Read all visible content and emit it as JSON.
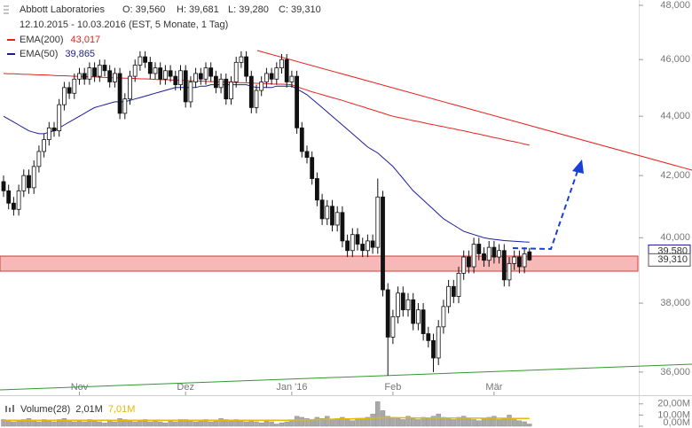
{
  "chart_data": {
    "type": "candlestick",
    "title": "Abbott Laboratories",
    "ohlc_labels": [
      "O: 39,560",
      "H: 39,681",
      "L: 39,280",
      "C: 39,310"
    ],
    "subtitle": "12.10.2015 - 10.03.2016 (EST, 5 Monate, 1 Tag)",
    "categories": [
      null,
      null,
      null,
      null,
      null,
      null,
      null,
      null,
      null,
      null,
      null,
      null,
      null,
      null,
      null,
      "Nov",
      null,
      null,
      null,
      null,
      null,
      null,
      null,
      null,
      null,
      null,
      null,
      null,
      null,
      null,
      null,
      null,
      null,
      null,
      null,
      null,
      "Dez",
      null,
      null,
      null,
      null,
      null,
      null,
      null,
      null,
      null,
      null,
      null,
      null,
      null,
      null,
      null,
      null,
      null,
      null,
      null,
      null,
      "Jan '16",
      null,
      null,
      null,
      null,
      null,
      null,
      null,
      null,
      null,
      null,
      null,
      null,
      null,
      null,
      null,
      null,
      null,
      null,
      null,
      "Feb",
      null,
      null,
      null,
      null,
      null,
      null,
      null,
      null,
      null,
      null,
      null,
      null,
      null,
      null,
      null,
      null,
      null,
      null,
      null,
      "Mär",
      null,
      null,
      null,
      null,
      null,
      null,
      null
    ],
    "open": [
      41.8,
      41.5,
      41.1,
      40.9,
      41.5,
      42.0,
      41.6,
      42.3,
      42.8,
      43.2,
      43.6,
      43.5,
      44.4,
      45.0,
      44.8,
      45.3,
      45.5,
      45.3,
      45.7,
      45.4,
      45.8,
      45.6,
      45.2,
      45.5,
      44.1,
      44.6,
      45.4,
      45.8,
      46.1,
      45.9,
      45.5,
      45.7,
      45.3,
      45.6,
      45.4,
      45.1,
      45.6,
      44.5,
      45.2,
      45.5,
      45.3,
      45.7,
      45.4,
      45.0,
      45.3,
      44.6,
      45.2,
      45.9,
      46.1,
      45.4,
      44.3,
      44.9,
      45.2,
      45.5,
      45.3,
      45.7,
      46.0,
      45.2,
      45.4,
      43.6,
      42.8,
      42.6,
      41.9,
      41.2,
      40.6,
      41.0,
      40.4,
      40.8,
      39.9,
      39.6,
      40.1,
      39.8,
      39.6,
      39.9,
      39.7,
      41.3,
      38.4,
      37.0,
      37.6,
      38.3,
      37.8,
      38.1,
      37.4,
      37.8,
      37.1,
      36.9,
      36.4,
      37.3,
      37.9,
      38.5,
      38.2,
      38.9,
      39.4,
      39.1,
      39.8,
      39.5,
      39.3,
      39.7,
      39.4,
      39.6,
      38.7,
      39.2,
      39.4,
      39.1,
      39.56
    ],
    "high": [
      42.0,
      41.7,
      41.3,
      41.7,
      42.2,
      42.2,
      42.5,
      43.0,
      43.4,
      43.8,
      43.8,
      44.6,
      45.2,
      45.2,
      45.5,
      45.7,
      45.7,
      45.9,
      45.9,
      46.0,
      46.0,
      45.8,
      45.7,
      45.7,
      44.8,
      45.6,
      46.0,
      46.3,
      46.3,
      46.1,
      45.9,
      45.9,
      45.8,
      45.8,
      45.6,
      45.8,
      45.8,
      45.4,
      45.7,
      45.7,
      45.9,
      45.9,
      45.6,
      45.5,
      45.5,
      45.4,
      46.1,
      46.3,
      46.3,
      45.6,
      45.1,
      45.4,
      45.7,
      45.7,
      45.9,
      46.2,
      46.2,
      45.6,
      45.6,
      43.8,
      43.0,
      42.8,
      42.1,
      41.4,
      41.2,
      41.2,
      41.0,
      41.0,
      40.1,
      40.3,
      40.3,
      40.0,
      40.1,
      40.1,
      41.9,
      41.5,
      38.6,
      37.8,
      38.5,
      38.5,
      38.3,
      38.3,
      38.0,
      38.0,
      37.3,
      37.1,
      37.5,
      38.1,
      38.7,
      38.7,
      39.1,
      39.6,
      39.6,
      40.0,
      40.0,
      39.7,
      39.9,
      39.9,
      39.8,
      39.8,
      39.4,
      39.6,
      39.6,
      39.7,
      39.681
    ],
    "low": [
      41.3,
      40.9,
      40.7,
      40.7,
      41.3,
      41.4,
      41.4,
      42.1,
      42.6,
      43.0,
      43.3,
      43.3,
      44.2,
      44.6,
      44.6,
      45.1,
      45.1,
      45.1,
      45.2,
      45.2,
      45.4,
      45.0,
      45.0,
      43.9,
      43.9,
      44.4,
      45.2,
      45.6,
      45.7,
      45.3,
      45.3,
      45.1,
      45.1,
      45.2,
      44.9,
      44.9,
      44.3,
      44.3,
      45.0,
      45.1,
      45.1,
      45.2,
      44.8,
      44.8,
      44.4,
      44.4,
      45.0,
      45.7,
      45.2,
      44.1,
      44.1,
      44.7,
      45.0,
      45.1,
      45.1,
      45.5,
      45.0,
      45.0,
      43.4,
      42.6,
      42.4,
      41.7,
      41.0,
      40.4,
      40.4,
      40.2,
      40.2,
      39.7,
      39.4,
      39.4,
      39.6,
      39.4,
      39.4,
      39.5,
      39.5,
      38.2,
      35.9,
      36.8,
      37.4,
      37.6,
      37.6,
      37.2,
      37.2,
      36.9,
      36.7,
      36.0,
      36.2,
      37.1,
      37.7,
      38.0,
      38.0,
      38.7,
      38.9,
      38.9,
      39.3,
      39.1,
      39.1,
      39.2,
      39.2,
      38.5,
      38.5,
      39.0,
      38.9,
      38.9,
      39.28
    ],
    "close": [
      41.5,
      41.1,
      40.9,
      41.5,
      42.0,
      41.6,
      42.3,
      42.8,
      43.2,
      43.6,
      43.5,
      44.4,
      45.0,
      44.8,
      45.3,
      45.5,
      45.3,
      45.7,
      45.4,
      45.8,
      45.6,
      45.2,
      45.5,
      44.1,
      44.6,
      45.4,
      45.8,
      46.1,
      45.9,
      45.5,
      45.7,
      45.3,
      45.6,
      45.4,
      45.1,
      45.6,
      44.5,
      45.2,
      45.5,
      45.3,
      45.7,
      45.4,
      45.0,
      45.3,
      44.6,
      45.2,
      45.9,
      46.1,
      45.4,
      44.3,
      44.9,
      45.2,
      45.5,
      45.3,
      45.7,
      46.0,
      45.2,
      45.4,
      43.6,
      42.8,
      42.6,
      41.9,
      41.2,
      40.6,
      41.0,
      40.4,
      40.8,
      39.9,
      39.6,
      40.1,
      39.8,
      39.6,
      39.9,
      39.7,
      41.3,
      38.4,
      37.0,
      37.6,
      38.3,
      37.8,
      38.1,
      37.4,
      37.8,
      37.1,
      36.9,
      36.4,
      37.3,
      37.9,
      38.5,
      38.2,
      38.9,
      39.4,
      39.1,
      39.8,
      39.5,
      39.3,
      39.7,
      39.4,
      39.6,
      38.7,
      39.2,
      39.4,
      39.1,
      39.5,
      39.31
    ],
    "up_color": "#ffffff",
    "down_color": "#111111",
    "series": [
      {
        "name": "EMA(200)",
        "value_label": "43,017",
        "color": "#e8211d",
        "values": [
          45.5,
          45.49,
          45.49,
          45.48,
          45.47,
          45.47,
          45.46,
          45.45,
          45.45,
          45.44,
          45.43,
          45.42,
          45.42,
          45.41,
          45.4,
          45.4,
          45.39,
          45.38,
          45.38,
          45.37,
          45.36,
          45.35,
          45.35,
          45.34,
          45.33,
          45.33,
          45.32,
          45.31,
          45.31,
          45.3,
          45.29,
          45.28,
          45.28,
          45.27,
          45.26,
          45.26,
          45.25,
          45.24,
          45.24,
          45.23,
          45.22,
          45.21,
          45.21,
          45.2,
          45.19,
          45.19,
          45.18,
          45.17,
          45.17,
          45.16,
          45.15,
          45.14,
          45.14,
          45.13,
          45.12,
          45.12,
          45.11,
          45.1,
          45.03,
          44.97,
          44.91,
          44.85,
          44.8,
          44.75,
          44.7,
          44.65,
          44.6,
          44.55,
          44.49,
          44.44,
          44.38,
          44.33,
          44.27,
          44.22,
          44.16,
          44.11,
          44.05,
          44.0,
          43.96,
          43.93,
          43.89,
          43.85,
          43.82,
          43.78,
          43.74,
          43.71,
          43.67,
          43.64,
          43.6,
          43.57,
          43.53,
          43.5,
          43.46,
          43.42,
          43.39,
          43.35,
          43.31,
          43.27,
          43.24,
          43.2,
          43.16,
          43.13,
          43.09,
          43.05,
          43.017
        ]
      },
      {
        "name": "EMA(50)",
        "value_label": "39,865",
        "color": "#1c1c9a",
        "values": [
          44.0,
          43.9,
          43.8,
          43.7,
          43.6,
          43.5,
          43.45,
          43.4,
          43.4,
          43.45,
          43.5,
          43.6,
          43.7,
          43.8,
          43.9,
          44.0,
          44.1,
          44.2,
          44.3,
          44.35,
          44.4,
          44.45,
          44.5,
          44.5,
          44.5,
          44.55,
          44.6,
          44.65,
          44.7,
          44.75,
          44.8,
          44.85,
          44.9,
          44.95,
          45.0,
          45.0,
          45.0,
          45.0,
          45.0,
          45.05,
          45.05,
          45.1,
          45.1,
          45.1,
          45.1,
          45.1,
          45.1,
          45.1,
          45.1,
          45.05,
          45.0,
          45.0,
          45.0,
          45.0,
          45.05,
          45.05,
          45.05,
          45.05,
          44.95,
          44.85,
          44.75,
          44.6,
          44.45,
          44.3,
          44.15,
          44.0,
          43.85,
          43.7,
          43.55,
          43.4,
          43.25,
          43.1,
          42.95,
          42.85,
          42.75,
          42.6,
          42.45,
          42.3,
          42.1,
          41.9,
          41.7,
          41.5,
          41.35,
          41.2,
          41.05,
          40.9,
          40.75,
          40.6,
          40.5,
          40.4,
          40.3,
          40.2,
          40.15,
          40.1,
          40.05,
          40.0,
          39.97,
          39.95,
          39.93,
          39.91,
          39.9,
          39.89,
          39.88,
          39.87,
          39.865
        ]
      }
    ],
    "ylim": [
      35.5,
      48.2
    ],
    "log_scale": true,
    "yticks": [
      {
        "value": 36,
        "label": "36,000"
      },
      {
        "value": 38,
        "label": "38,000"
      },
      {
        "value": 40,
        "label": "40,000"
      },
      {
        "value": 42,
        "label": "42,000"
      },
      {
        "value": 44,
        "label": "44,000"
      },
      {
        "value": 46,
        "label": "46,000"
      },
      {
        "value": 48,
        "label": "48,000"
      }
    ],
    "price_tags": [
      {
        "value": 39.58,
        "label": "39,580",
        "color": "#1c1c9a"
      },
      {
        "value": 39.31,
        "label": "39,310",
        "color": "#555555"
      }
    ],
    "volume": {
      "type": "bar",
      "name": "Volume(28)",
      "value_label": "2,01M",
      "color": "#a9a9a9",
      "values": [
        6,
        5,
        4,
        5,
        6,
        7,
        5,
        4,
        6,
        5,
        4,
        6,
        7,
        5,
        4,
        5,
        4,
        6,
        5,
        4,
        3,
        5,
        4,
        7,
        6,
        5,
        4,
        5,
        6,
        4,
        5,
        4,
        3,
        5,
        4,
        6,
        6,
        5,
        4,
        5,
        6,
        4,
        5,
        7,
        6,
        5,
        6,
        5,
        4,
        5,
        4,
        3,
        5,
        4,
        2,
        3,
        4,
        5,
        9,
        8,
        7,
        6,
        8,
        7,
        9,
        6,
        7,
        8,
        6,
        5,
        7,
        6,
        8,
        11,
        22,
        14,
        9,
        8,
        7,
        6,
        9,
        7,
        6,
        8,
        7,
        9,
        11,
        8,
        7,
        6,
        8,
        9,
        7,
        6,
        5,
        7,
        8,
        9,
        6,
        7,
        10,
        6,
        5,
        4,
        2.01
      ],
      "average": {
        "value_label": "7,01M",
        "color": "#e6b800",
        "values": [
          5.4,
          5.4,
          5.4,
          5.4,
          5.4,
          5.4,
          5.4,
          5.4,
          5.4,
          5.4,
          5.4,
          5.4,
          5.4,
          5.4,
          5.4,
          5.4,
          5.4,
          5.4,
          5.4,
          5.4,
          5.4,
          5.4,
          5.4,
          5.4,
          5.4,
          5.4,
          5.4,
          5.4,
          5.4,
          5.4,
          5.4,
          5.4,
          5.4,
          5.4,
          5.4,
          5.4,
          5.4,
          5.4,
          5.4,
          5.4,
          5.4,
          5.4,
          5.4,
          5.4,
          5.4,
          5.4,
          5.4,
          5.4,
          5.4,
          5.4,
          5.4,
          5.4,
          5.4,
          5.4,
          5.4,
          5.4,
          5.4,
          5.5,
          5.6,
          5.7,
          5.8,
          5.9,
          6.0,
          6.1,
          6.2,
          6.3,
          6.4,
          6.5,
          6.6,
          6.7,
          6.8,
          6.9,
          7.0,
          7.1,
          7.3,
          7.5,
          7.6,
          7.6,
          7.6,
          7.5,
          7.5,
          7.5,
          7.4,
          7.4,
          7.4,
          7.4,
          7.3,
          7.3,
          7.3,
          7.3,
          7.2,
          7.2,
          7.2,
          7.2,
          7.2,
          7.1,
          7.1,
          7.1,
          7.1,
          7.1,
          7.0,
          7.0,
          7.0,
          7.0,
          7.01
        ]
      },
      "ylim": [
        0,
        23
      ],
      "yticks": [
        {
          "value": 0,
          "label": "0,00M"
        },
        {
          "value": 10,
          "label": "10,00M"
        },
        {
          "value": 20,
          "label": "20,00M"
        }
      ]
    }
  }
}
